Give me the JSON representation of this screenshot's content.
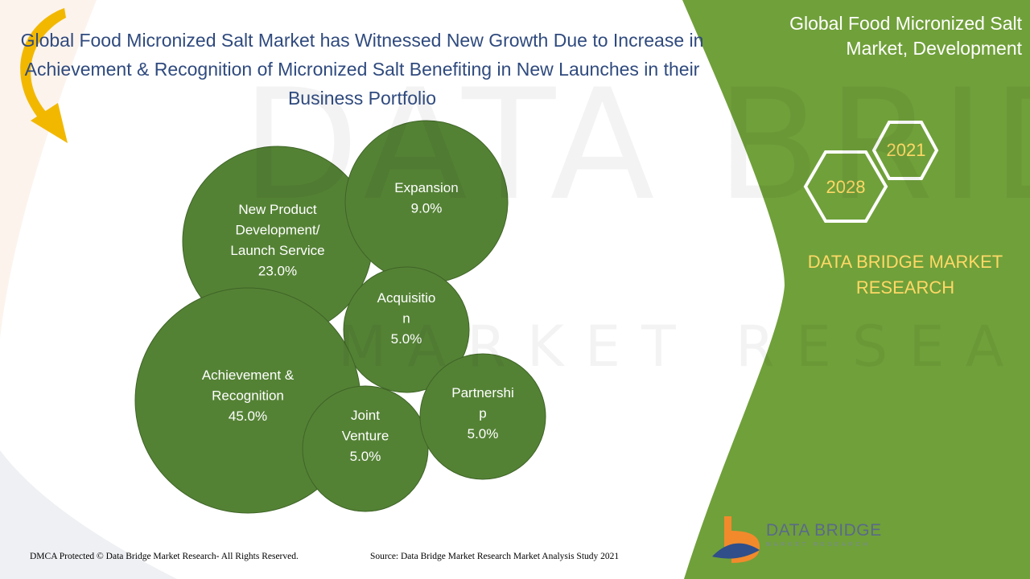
{
  "title": "Global Food Micronized Salt Market has Witnessed New Growth Due to Increase in Achievement & Recognition of Micronized Salt Benefiting in New Launches in their Business Portfolio",
  "side_panel": {
    "title": "Global Food Micronized Salt Market, Development",
    "badge_a": "2021",
    "badge_b": "2028",
    "brand": "DATA BRIDGE MARKET RESEARCH"
  },
  "chart_data": {
    "type": "bubble",
    "bubbles": [
      {
        "label_lines": [
          "New Product",
          "Development/",
          "Launch Service"
        ],
        "value": "23.0%"
      },
      {
        "label_lines": [
          "Expansion"
        ],
        "value": "9.0%"
      },
      {
        "label_lines": [
          "Acquisitio",
          "n"
        ],
        "value": "5.0%"
      },
      {
        "label_lines": [
          "Achievement  &",
          "Recognition"
        ],
        "value": "45.0%"
      },
      {
        "label_lines": [
          "Joint",
          "Venture"
        ],
        "value": "5.0%"
      },
      {
        "label_lines": [
          "Partnershi",
          "p"
        ],
        "value": "5.0%"
      }
    ]
  },
  "footer": {
    "left": "DMCA Protected © Data Bridge Market Research- All Rights Reserved.",
    "right": "Source: Data Bridge Market Research Market Analysis Study 2021"
  },
  "logo": {
    "name": "DATA BRIDGE",
    "tagline": "MARKET RESEARCH"
  },
  "watermark": {
    "line1": "DATA BRIDGE",
    "line2": "MARKET RESEARCH"
  },
  "colors": {
    "bubble_fill": "#548235",
    "panel_green": "#70a03a",
    "brand_yellow": "#ffd966",
    "title_blue": "#2f4a7e",
    "arrow_gold": "#f2b800"
  }
}
